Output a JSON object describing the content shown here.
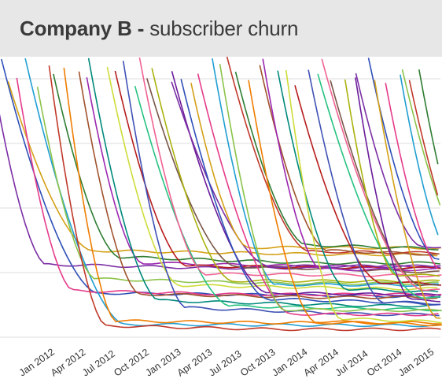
{
  "header": {
    "company": "Company B",
    "separator": "-",
    "subtitle": "subscriber churn"
  },
  "chart_data": {
    "type": "line",
    "title": "Company B - subscriber churn",
    "xlabel": "",
    "ylabel": "",
    "x_ticks": [
      "Jan 2012",
      "Apr 2012",
      "Jul 2012",
      "Oct 2012",
      "Jan 2013",
      "Apr 2013",
      "Jul 2013",
      "Oct 2013",
      "Jan 2014",
      "Apr 2014",
      "Jul 2014",
      "Oct 2014",
      "Jan 2015"
    ],
    "xlim": [
      "2011-11-01",
      "2015-03-01"
    ],
    "y_range": "not labeled",
    "grid": "horizontal gridlines",
    "series_count": 48,
    "cohort_colors": [
      "#7b2ea5",
      "#2e4fb8",
      "#d4a017",
      "#e53b8a",
      "#1f9ed1",
      "#8bc34a",
      "#c0392b",
      "#2e7d32",
      "#ef7c00",
      "#a0522d",
      "#9c27b0",
      "#00897b",
      "#cddc39",
      "#b71c1c",
      "#3f51b5",
      "#26c281",
      "#f06292",
      "#795548",
      "#aab20d",
      "#6a1b9a"
    ]
  }
}
